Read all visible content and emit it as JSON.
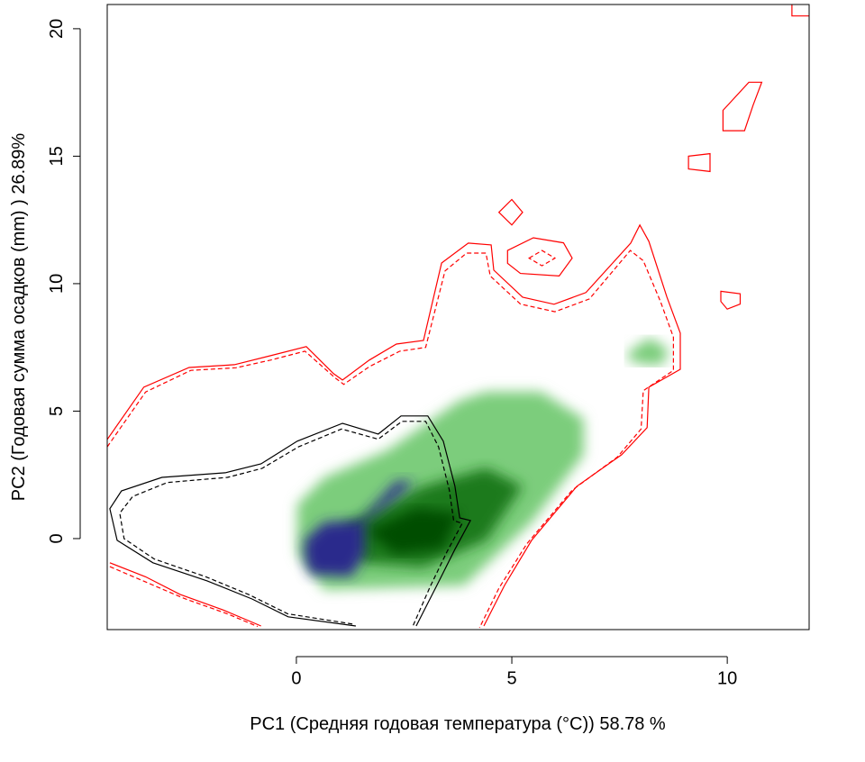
{
  "chart_data": {
    "type": "contour",
    "x_label": "PC1 (Средняя годовая температура (°C)) 58.78 %",
    "y_label": "PC2 (Годовая сумма осадков  (mm) ) 26.89%",
    "xlim": [
      -4.39,
      11.9
    ],
    "ylim": [
      -3.57,
      20.95
    ],
    "xticks": [
      0,
      5,
      10
    ],
    "yticks": [
      0,
      5,
      10,
      15,
      20
    ],
    "layers": [
      {
        "fill": "#7ccd7c",
        "closed": true,
        "blur": true,
        "x": [
          0.02,
          0.65,
          2.11,
          3.79,
          4.41,
          5.67,
          6.67,
          6.67,
          5.46,
          3.89,
          0.65,
          0.02
        ],
        "y": [
          1.34,
          2.4,
          3.46,
          5.41,
          5.76,
          5.76,
          4.7,
          3.29,
          0.64,
          -1.84,
          -2.01,
          -0.6
        ]
      },
      {
        "fill": "#7ccd7c",
        "closed": true,
        "blur": true,
        "x": [
          7.7,
          8.2,
          8.64,
          8.5,
          8.1,
          7.7
        ],
        "y": [
          7.3,
          7.88,
          7.4,
          6.82,
          6.82,
          7.0
        ]
      },
      {
        "fill": "#1f7a1f",
        "closed": true,
        "blur": true,
        "x": [
          1.07,
          2.95,
          4.41,
          5.25,
          4.41,
          2.95,
          1.49
        ],
        "y": [
          0.46,
          2.05,
          2.76,
          2.05,
          -0.07,
          -1.13,
          -0.95
        ]
      },
      {
        "fill": "#004d00",
        "closed": true,
        "blur": true,
        "x": [
          1.6,
          2.8,
          3.8,
          3.4,
          2.3
        ],
        "y": [
          0.3,
          1.2,
          1.0,
          -0.4,
          -0.6
        ]
      },
      {
        "fill": "#2a2a8c",
        "closed": true,
        "blur": true,
        "x": [
          0.19,
          0.65,
          1.49,
          2.32,
          2.74,
          2.11,
          1.59,
          1.59,
          1.28,
          0.33,
          0.19
        ],
        "y": [
          -0.07,
          0.64,
          0.71,
          2.23,
          2.23,
          1.34,
          0.64,
          -0.6,
          -1.48,
          -1.41,
          -0.78
        ]
      },
      {
        "color": "#ff0000",
        "dash": false,
        "closed": false,
        "x": [
          -4.39,
          -3.54,
          -2.49,
          -1.44,
          -0.61,
          0.23,
          0.86,
          1.07,
          1.69,
          2.32,
          2.95,
          3.37,
          3.99,
          4.52,
          4.58,
          5.25,
          5.98,
          6.72,
          7.76,
          7.97,
          8.18,
          8.6,
          8.91,
          8.91,
          8.18,
          8.14,
          7.55,
          6.51,
          5.46,
          4.83,
          4.35
        ],
        "y": [
          3.89,
          5.94,
          6.71,
          6.82,
          7.17,
          7.53,
          6.47,
          6.22,
          7.0,
          7.63,
          7.77,
          10.81,
          11.59,
          11.52,
          10.53,
          9.47,
          9.19,
          9.65,
          11.59,
          12.3,
          11.66,
          9.47,
          8.06,
          6.64,
          5.94,
          4.35,
          3.29,
          2.05,
          -0.07,
          -1.84,
          -3.43
        ]
      },
      {
        "color": "#ff0000",
        "dash": true,
        "closed": false,
        "x": [
          -4.39,
          -3.5,
          -2.45,
          -1.4,
          -0.6,
          0.2,
          0.9,
          1.1,
          1.7,
          2.4,
          3.0,
          3.45,
          3.95,
          4.4,
          4.5,
          5.2,
          6.0,
          6.8,
          7.75,
          8.05,
          8.45,
          8.75,
          8.75,
          8.05,
          8.0,
          7.45,
          6.4,
          5.35,
          4.7,
          4.25
        ],
        "y": [
          3.6,
          5.75,
          6.6,
          6.7,
          7.0,
          7.35,
          6.3,
          6.05,
          6.75,
          7.35,
          7.5,
          10.5,
          11.2,
          11.2,
          10.3,
          9.2,
          8.9,
          9.4,
          11.3,
          10.9,
          9.3,
          7.9,
          6.6,
          5.8,
          4.3,
          3.2,
          1.9,
          -0.2,
          -1.95,
          -3.5
        ]
      },
      {
        "color": "#ff0000",
        "dash": false,
        "closed": false,
        "x": [
          -4.33,
          -3.5,
          -2.7,
          -1.7,
          -0.82
        ],
        "y": [
          -0.95,
          -1.5,
          -2.19,
          -2.8,
          -3.43
        ]
      },
      {
        "color": "#ff0000",
        "dash": true,
        "closed": false,
        "x": [
          -4.33,
          -3.5,
          -2.6,
          -1.6,
          -0.9
        ],
        "y": [
          -1.1,
          -1.7,
          -2.35,
          -2.95,
          -3.45
        ]
      },
      {
        "color": "#ff0000",
        "dash": false,
        "closed": true,
        "x": [
          4.7,
          5.0,
          5.25,
          5.0
        ],
        "y": [
          12.8,
          13.3,
          12.8,
          12.3
        ]
      },
      {
        "color": "#ff0000",
        "dash": false,
        "closed": true,
        "x": [
          4.9,
          5.5,
          6.2,
          6.4,
          6.1,
          5.2,
          4.9
        ],
        "y": [
          11.3,
          11.8,
          11.6,
          11.0,
          10.3,
          10.4,
          10.8
        ]
      },
      {
        "color": "#ff0000",
        "dash": true,
        "closed": true,
        "x": [
          5.4,
          5.7,
          6.0,
          5.7
        ],
        "y": [
          11.0,
          11.3,
          11.0,
          10.7
        ]
      },
      {
        "color": "#ff0000",
        "dash": false,
        "closed": true,
        "x": [
          9.1,
          9.6,
          9.6,
          9.1
        ],
        "y": [
          15.0,
          15.1,
          14.4,
          14.5
        ]
      },
      {
        "color": "#ff0000",
        "dash": false,
        "closed": true,
        "x": [
          9.85,
          10.3,
          10.3,
          10.0,
          9.85
        ],
        "y": [
          9.7,
          9.6,
          9.2,
          9.0,
          9.3
        ]
      },
      {
        "color": "#ff0000",
        "dash": false,
        "closed": true,
        "x": [
          9.9,
          10.5,
          10.8,
          10.6,
          10.4,
          9.9
        ],
        "y": [
          16.8,
          17.9,
          17.9,
          17.0,
          16.0,
          16.0
        ]
      },
      {
        "color": "#ff0000",
        "dash": false,
        "closed": false,
        "x": [
          11.5,
          11.5,
          11.9
        ],
        "y": [
          20.95,
          20.5,
          20.5
        ]
      },
      {
        "color": "#000000",
        "dash": false,
        "closed": false,
        "x": [
          1.38,
          -0.19,
          -1.03,
          -2.07,
          -3.33,
          -4.16,
          -4.33,
          -4.06,
          -3.12,
          -1.65,
          -0.82,
          0.02,
          1.07,
          1.9,
          2.43,
          3.05,
          3.41,
          3.68,
          3.79,
          4.04,
          3.68,
          3.26,
          2.78
        ],
        "y": [
          -3.43,
          -3.07,
          -2.37,
          -1.66,
          -0.95,
          -0.07,
          1.17,
          1.87,
          2.4,
          2.58,
          2.93,
          3.82,
          4.52,
          4.1,
          4.81,
          4.81,
          3.82,
          2.05,
          0.81,
          0.71,
          -0.42,
          -1.84,
          -3.43
        ]
      },
      {
        "color": "#000000",
        "dash": true,
        "closed": false,
        "x": [
          1.3,
          -0.2,
          -1.1,
          -2.1,
          -3.3,
          -4.0,
          -4.1,
          -3.8,
          -3.0,
          -1.6,
          -0.8,
          0.05,
          1.05,
          1.9,
          2.45,
          3.0,
          3.3,
          3.55,
          3.65,
          3.85,
          3.5,
          3.1,
          2.7
        ],
        "y": [
          -3.35,
          -2.95,
          -2.2,
          -1.5,
          -0.8,
          0.0,
          1.0,
          1.65,
          2.2,
          2.4,
          2.75,
          3.6,
          4.3,
          3.9,
          4.6,
          4.6,
          3.6,
          1.9,
          0.7,
          0.6,
          -0.5,
          -1.9,
          -3.45
        ]
      }
    ]
  }
}
